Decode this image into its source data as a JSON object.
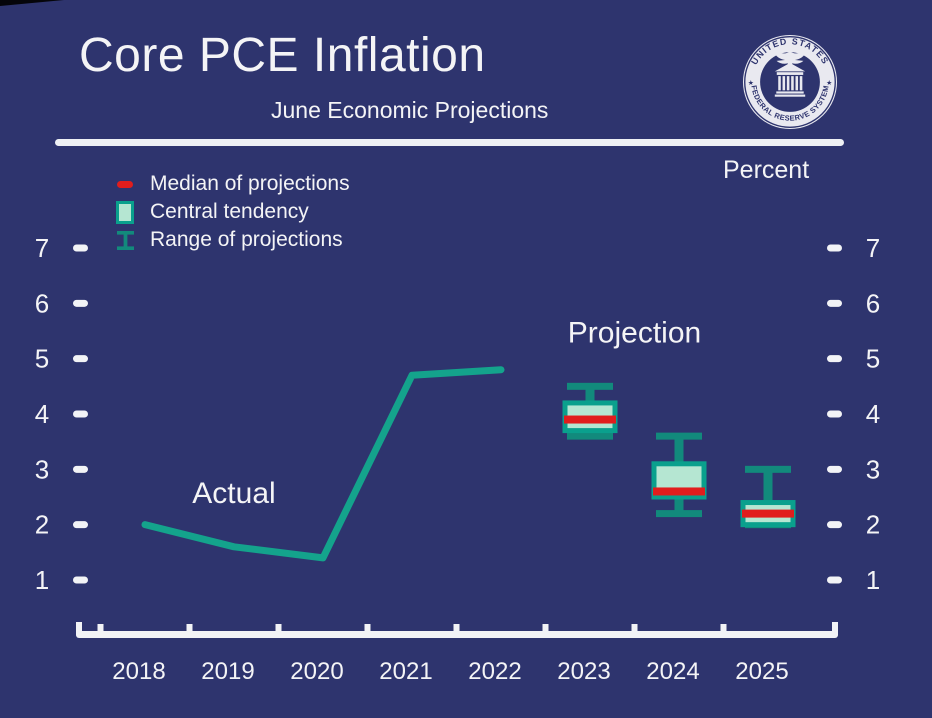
{
  "header": {
    "title": "Core PCE Inflation",
    "subtitle": "June Economic Projections",
    "seal_top_text": "UNITED STATES",
    "seal_bottom_text": "FEDERAL RESERVE SYSTEM"
  },
  "labels": {
    "percent": "Percent"
  },
  "colors": {
    "background": "#2e346e",
    "text": "#f4f4f6",
    "axis": "#f2f3f6",
    "line": "#14a38c",
    "box_border": "#0aa08d",
    "box_fill": "#b5e6d2",
    "range": "#128a7c",
    "median": "#e11d1d",
    "seal_light": "#e9e9f0"
  },
  "chart_data": {
    "type": "line",
    "title": "Core PCE Inflation",
    "subtitle": "June Economic Projections",
    "ylabel": "Percent",
    "xlabel": "",
    "grid": false,
    "ylim": [
      0.5,
      7.5
    ],
    "yticks": [
      1,
      2,
      3,
      4,
      5,
      6,
      7
    ],
    "categories": [
      "2018",
      "2019",
      "2020",
      "2021",
      "2022",
      "2023",
      "2024",
      "2025"
    ],
    "series": [
      {
        "name": "Actual",
        "type": "line",
        "x": [
          "2018",
          "2019",
          "2020",
          "2021",
          "2022"
        ],
        "values": [
          2.0,
          1.6,
          1.4,
          4.7,
          4.8
        ]
      }
    ],
    "projections": [
      {
        "year": "2023",
        "median": 3.9,
        "central_tendency": [
          3.7,
          4.2
        ],
        "range": [
          3.6,
          4.5
        ]
      },
      {
        "year": "2024",
        "median": 2.6,
        "central_tendency": [
          2.5,
          3.1
        ],
        "range": [
          2.2,
          3.6
        ]
      },
      {
        "year": "2025",
        "median": 2.2,
        "central_tendency": [
          2.0,
          2.4
        ],
        "range": [
          2.0,
          3.0
        ]
      }
    ],
    "annotations": [
      {
        "text": "Actual",
        "year": 2019.0,
        "value": 2.57
      },
      {
        "text": "Projection",
        "year": 2023.5,
        "value": 5.47
      }
    ],
    "legend": [
      {
        "label": "Median of projections",
        "swatch": "median-dash"
      },
      {
        "label": "Central tendency",
        "swatch": "central-tendency-box"
      },
      {
        "label": "Range of projections",
        "swatch": "range-i-beam"
      }
    ],
    "legend_position": "top-left"
  }
}
